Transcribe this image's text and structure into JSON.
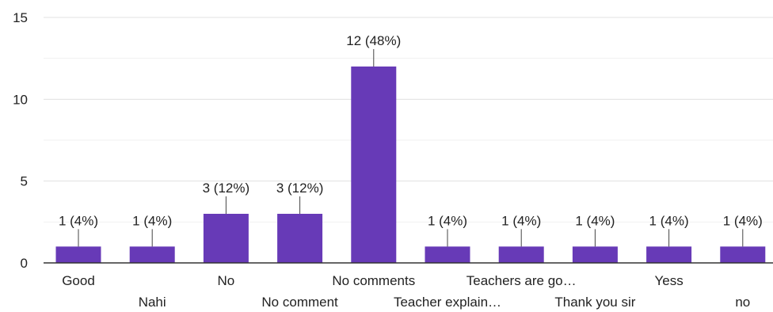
{
  "chart_data": {
    "type": "bar",
    "title": "",
    "xlabel": "",
    "ylabel": "",
    "ylim": [
      0,
      15
    ],
    "yticks": [
      0,
      5,
      10,
      15
    ],
    "grid": true,
    "bar_color": "#673ab7",
    "categories": [
      "Good",
      "Nahi",
      "No",
      "No comment",
      "No comments",
      "Teacher explain…",
      "Teachers are go…",
      "Thank you sir",
      "Yess",
      "no"
    ],
    "values": [
      1,
      1,
      3,
      3,
      12,
      1,
      1,
      1,
      1,
      1
    ],
    "data_labels": [
      "1 (4%)",
      "1 (4%)",
      "3 (12%)",
      "3 (12%)",
      "12 (48%)",
      "1 (4%)",
      "1 (4%)",
      "1 (4%)",
      "1 (4%)",
      "1 (4%)"
    ]
  }
}
